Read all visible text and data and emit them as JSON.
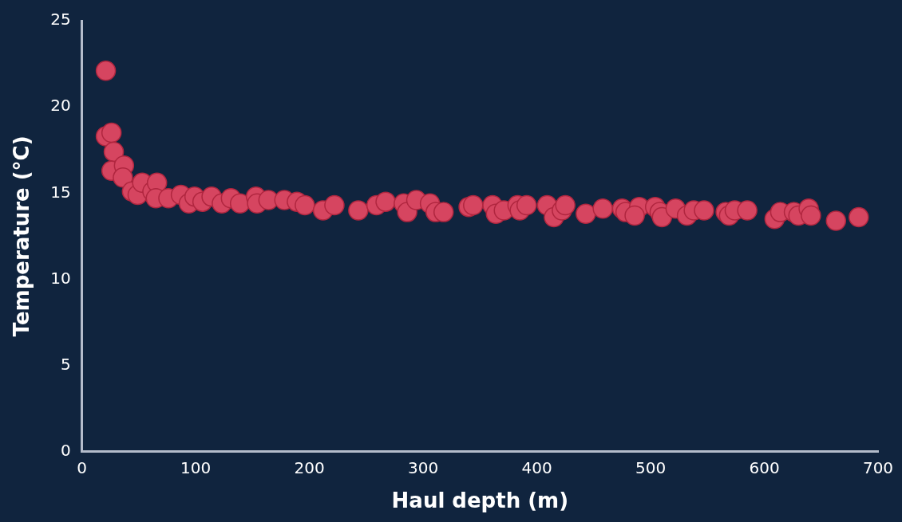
{
  "chart_data": {
    "type": "scatter",
    "xlabel": "Haul depth (m)",
    "ylabel": "Temperature (°C)",
    "color": "#d64560",
    "marker": "circle",
    "xlim": [
      0,
      700
    ],
    "xticks": [
      0,
      100,
      200,
      300,
      400,
      500,
      600,
      700
    ],
    "ylim": [
      0,
      25
    ],
    "yticks": [
      0,
      5,
      10,
      15,
      20,
      25
    ],
    "x": [
      21,
      21,
      26,
      28,
      26,
      37,
      36,
      44,
      49,
      53,
      62,
      66,
      65,
      76,
      87,
      94,
      99,
      106,
      114,
      123,
      131,
      139,
      153,
      154,
      164,
      178,
      189,
      196,
      212,
      222,
      243,
      259,
      267,
      283,
      286,
      294,
      306,
      311,
      318,
      340,
      344,
      361,
      364,
      371,
      383,
      385,
      391,
      409,
      415,
      422,
      425,
      443,
      458,
      475,
      478,
      490,
      486,
      504,
      508,
      510,
      522,
      532,
      538,
      547,
      566,
      569,
      574,
      585,
      609,
      614,
      626,
      630,
      639,
      641,
      663,
      683
    ],
    "values": [
      22.1,
      18.3,
      18.5,
      17.4,
      16.3,
      16.6,
      15.9,
      15.1,
      14.9,
      15.6,
      15.1,
      15.6,
      14.7,
      14.7,
      14.9,
      14.4,
      14.8,
      14.5,
      14.8,
      14.4,
      14.7,
      14.4,
      14.8,
      14.4,
      14.6,
      14.6,
      14.5,
      14.3,
      14.0,
      14.3,
      14.0,
      14.3,
      14.5,
      14.4,
      13.9,
      14.6,
      14.4,
      13.9,
      13.9,
      14.2,
      14.3,
      14.3,
      13.8,
      14.0,
      14.3,
      14.0,
      14.3,
      14.3,
      13.6,
      14.0,
      14.3,
      13.8,
      14.1,
      14.1,
      13.9,
      14.2,
      13.7,
      14.2,
      13.9,
      13.6,
      14.1,
      13.7,
      14.0,
      14.0,
      13.9,
      13.7,
      14.0,
      14.0,
      13.5,
      13.9,
      13.9,
      13.7,
      14.1,
      13.7,
      13.4,
      13.6
    ]
  }
}
